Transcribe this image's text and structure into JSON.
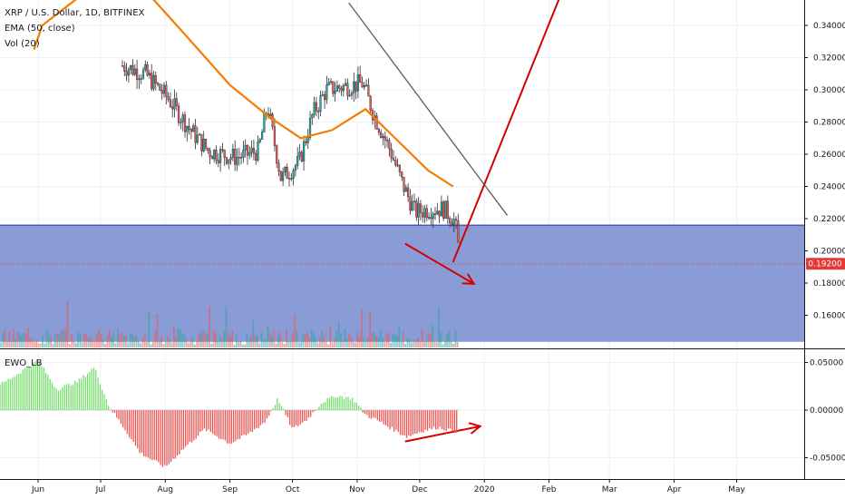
{
  "legend": {
    "symbol": "XRP / U.S. Dollar, 1D, BITFINEX",
    "ema": "EMA (50, close)",
    "vol": "Vol (20)",
    "ewo": "EWO_LB"
  },
  "current_price": "0.19200",
  "colors": {
    "up": "#26a69a",
    "down": "#ef5350",
    "ema": "#f57c00",
    "zone": "#6f86cc",
    "zone_border": "#283593",
    "arrow": "#d50000",
    "trendline": "#5d5d5d",
    "ewo_pos": "#76e06d",
    "ewo_neg": "#ef5350",
    "price_tag": "#e53935"
  },
  "chart_data": [
    {
      "type": "candlestick",
      "title": "XRP / U.S. Dollar, 1D, BITFINEX",
      "y_ticks": [
        "0.34000",
        "0.32000",
        "0.30000",
        "0.28000",
        "0.26000",
        "0.24000",
        "0.22000",
        "0.20000",
        "0.18000",
        "0.16000"
      ],
      "x_ticks": [
        "Jun",
        "Jul",
        "Aug",
        "Sep",
        "Oct",
        "Nov",
        "Dec",
        "2020",
        "Feb",
        "Mar",
        "Apr",
        "May"
      ],
      "grid": true,
      "series": [
        {
          "name": "EMA (50, close)",
          "type": "line"
        },
        {
          "name": "Vol (20)",
          "type": "bar"
        }
      ],
      "ema_points": [
        {
          "date": "2019-05-30",
          "value": 0.325
        },
        {
          "date": "2019-06-03",
          "value": 0.34
        },
        {
          "date": "2019-07-05",
          "value": 0.372
        },
        {
          "date": "2019-07-25",
          "value": 0.358
        },
        {
          "date": "2019-08-10",
          "value": 0.335
        },
        {
          "date": "2019-09-01",
          "value": 0.303
        },
        {
          "date": "2019-09-20",
          "value": 0.283
        },
        {
          "date": "2019-10-05",
          "value": 0.27
        },
        {
          "date": "2019-10-20",
          "value": 0.275
        },
        {
          "date": "2019-11-05",
          "value": 0.288
        },
        {
          "date": "2019-11-20",
          "value": 0.269
        },
        {
          "date": "2019-12-05",
          "value": 0.25
        },
        {
          "date": "2019-12-17",
          "value": 0.24
        }
      ],
      "support_zone": [
        0.1435,
        0.216
      ],
      "trendline": [
        {
          "date": "2019-10-28",
          "value": 0.354
        },
        {
          "date": "2020-01-12",
          "value": 0.222
        }
      ],
      "projection_up": [
        {
          "date": "2019-12-17",
          "value": 0.193
        },
        {
          "date": "2020-02-06",
          "value": 0.357
        }
      ],
      "lower_low_arrow": [
        {
          "date": "2019-11-24",
          "value": 0.2045
        },
        {
          "date": "2019-12-27",
          "value": 0.1795
        }
      ],
      "current_price_value": 0.192
    },
    {
      "type": "bar",
      "title": "EWO_LB",
      "y_ticks": [
        "0.05000",
        "0.00000",
        "-0.05000"
      ],
      "divergence_arrow": [
        {
          "date": "2019-11-24",
          "value": -0.033
        },
        {
          "date": "2019-12-30",
          "value": -0.017
        }
      ],
      "series": [
        {
          "name": "EWO_LB",
          "x": [
            "2019-05-15",
            "2019-06-01",
            "2019-06-10",
            "2019-06-20",
            "2019-06-28",
            "2019-07-05",
            "2019-07-12",
            "2019-07-20",
            "2019-08-01",
            "2019-08-10",
            "2019-08-20",
            "2019-09-01",
            "2019-09-10",
            "2019-09-18",
            "2019-09-24",
            "2019-10-01",
            "2019-10-08",
            "2019-10-15",
            "2019-10-22",
            "2019-10-30",
            "2019-11-05",
            "2019-11-10",
            "2019-11-18",
            "2019-11-25",
            "2019-12-02",
            "2019-12-10",
            "2019-12-17"
          ],
          "values": [
            0.028,
            0.052,
            0.022,
            0.03,
            0.045,
            0.004,
            -0.018,
            -0.045,
            -0.06,
            -0.04,
            -0.02,
            -0.035,
            -0.025,
            -0.012,
            0.012,
            -0.02,
            -0.01,
            0.008,
            0.015,
            0.012,
            -0.005,
            -0.01,
            -0.02,
            -0.028,
            -0.022,
            -0.018,
            -0.022
          ]
        }
      ]
    }
  ]
}
